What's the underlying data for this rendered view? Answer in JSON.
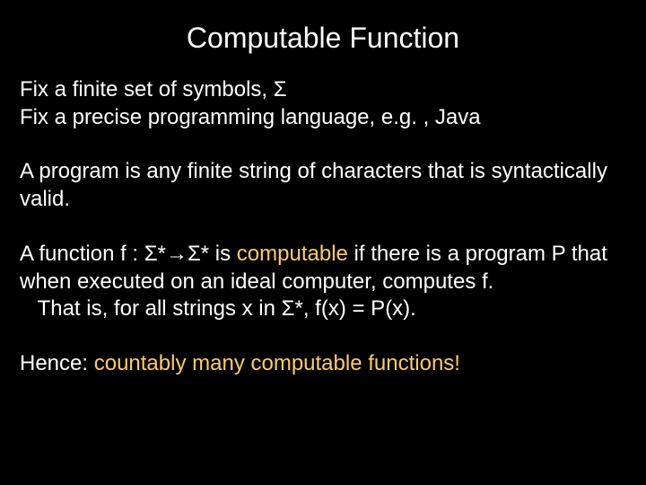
{
  "colors": {
    "background": "#000000",
    "text": "#ffffff",
    "highlight": "#ffcc66"
  },
  "typography": {
    "title_fontsize": 32,
    "body_fontsize": 24,
    "font_family": "Arial"
  },
  "title": "Computable Function",
  "para1_line1_a": "Fix a finite set of symbols, ",
  "para1_line1_sigma": "Σ",
  "para1_line2": "Fix a precise programming language, e.g. , Java",
  "para2": "A program is any finite string of characters that is syntactically valid.",
  "para3_a": "A function f : ",
  "para3_sig1": "Σ",
  "para3_star1": "*",
  "para3_arrow": "→",
  "para3_sig2": "Σ",
  "para3_star2": "*",
  "para3_b": " is ",
  "para3_comp": "computable",
  "para3_c": " if there is a program P that when executed on an ideal computer, computes f.",
  "para3_indent": "   That is, for all strings x in ",
  "para3_sig3": "Σ",
  "para3_star3": "*",
  "para3_d": ", f(x) = P(x).",
  "para4_a": "Hence:  ",
  "para4_b": "countably many computable functions!"
}
